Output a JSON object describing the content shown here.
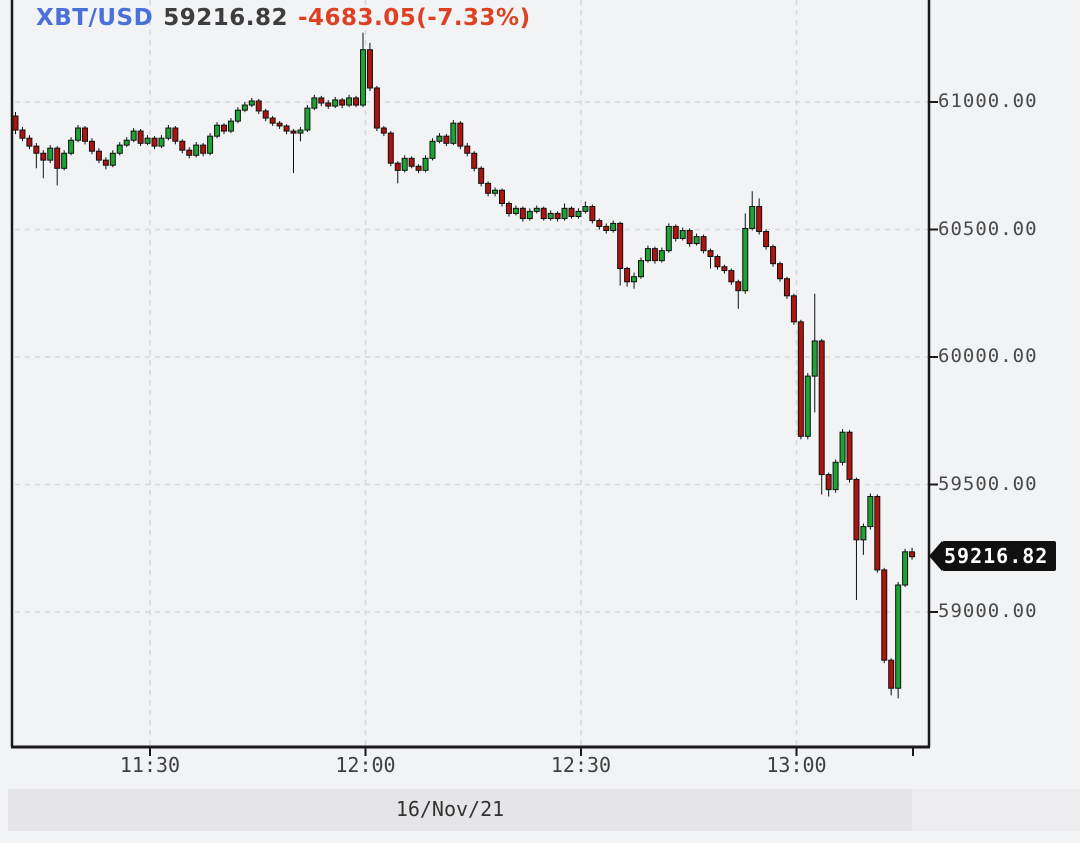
{
  "header": {
    "symbol": "XBT/USD",
    "last_price": "59216.82",
    "change": "-4683.05(-7.33%)"
  },
  "price_tag": {
    "value": "59216.82"
  },
  "date_label": "16/Nov/21",
  "colors": {
    "up_candle": "#1da334",
    "down_candle": "#ad1410",
    "candle_outline": "#101010",
    "axis": "#1a1a1a",
    "gridline": "#d8d8da",
    "symbol_blue": "#4a70d9",
    "change_red": "#dd4023",
    "tag_background": "#101010",
    "background": "#f2f3f5"
  },
  "chart_data": {
    "type": "candlestick",
    "title": "XBT/USD",
    "interval": "1m",
    "start_time": "11:10",
    "date": "16/Nov/21",
    "last_price": 59216.82,
    "change_abs": -4683.05,
    "change_pct": -7.33,
    "ylim": [
      58600,
      61350
    ],
    "grid": "dashed",
    "y_axis": {
      "labels": [
        {
          "text": "61000.00",
          "price": 61000
        },
        {
          "text": "60500.00",
          "price": 60500
        },
        {
          "text": "60000.00",
          "price": 60000
        },
        {
          "text": "59500.00",
          "price": 59500
        },
        {
          "text": "59000.00",
          "price": 59000
        }
      ]
    },
    "x_axis": {
      "labels": [
        "11:30",
        "12:00",
        "12:30",
        "13:00"
      ]
    },
    "candles": [
      [
        60945,
        60961,
        60874,
        60890
      ],
      [
        60890,
        60902,
        60846,
        60858
      ],
      [
        60858,
        60870,
        60815,
        60827
      ],
      [
        60827,
        60839,
        60740,
        60799
      ],
      [
        60799,
        60811,
        60701,
        60772
      ],
      [
        60772,
        60831,
        60760,
        60819
      ],
      [
        60819,
        60827,
        60673,
        60740
      ],
      [
        60740,
        60811,
        60732,
        60799
      ],
      [
        60799,
        60862,
        60791,
        60850
      ],
      [
        60850,
        60910,
        60842,
        60898
      ],
      [
        60898,
        60906,
        60834,
        60846
      ],
      [
        60846,
        60858,
        60795,
        60807
      ],
      [
        60807,
        60819,
        60760,
        60772
      ],
      [
        60772,
        60783,
        60736,
        60752
      ],
      [
        60752,
        60811,
        60744,
        60799
      ],
      [
        60799,
        60843,
        60791,
        60831
      ],
      [
        60831,
        60862,
        60823,
        60850
      ],
      [
        60850,
        60898,
        60842,
        60886
      ],
      [
        60886,
        60894,
        60827,
        60838
      ],
      [
        60838,
        60870,
        60831,
        60858
      ],
      [
        60858,
        60866,
        60815,
        60827
      ],
      [
        60827,
        60870,
        60819,
        60858
      ],
      [
        60858,
        60910,
        60850,
        60898
      ],
      [
        60898,
        60906,
        60834,
        60846
      ],
      [
        60846,
        60854,
        60799,
        60811
      ],
      [
        60811,
        60823,
        60779,
        60791
      ],
      [
        60791,
        60843,
        60783,
        60831
      ],
      [
        60831,
        60839,
        60787,
        60799
      ],
      [
        60799,
        60878,
        60791,
        60866
      ],
      [
        60866,
        60921,
        60858,
        60909
      ],
      [
        60909,
        60917,
        60874,
        60886
      ],
      [
        60886,
        60937,
        60878,
        60925
      ],
      [
        60925,
        60980,
        60917,
        60968
      ],
      [
        60968,
        61000,
        60960,
        60988
      ],
      [
        60988,
        61016,
        60980,
        61004
      ],
      [
        61004,
        61012,
        60953,
        60965
      ],
      [
        60965,
        60973,
        60925,
        60937
      ],
      [
        60937,
        60945,
        60906,
        60917
      ],
      [
        60917,
        60925,
        60894,
        60906
      ],
      [
        60906,
        60913,
        60874,
        60886
      ],
      [
        60886,
        60894,
        60721,
        60878
      ],
      [
        60878,
        60902,
        60846,
        60890
      ],
      [
        60890,
        60988,
        60882,
        60976
      ],
      [
        60976,
        61028,
        60968,
        61016
      ],
      [
        61016,
        61024,
        60984,
        60996
      ],
      [
        60996,
        61008,
        60973,
        60984
      ],
      [
        60984,
        61020,
        60976,
        61008
      ],
      [
        61008,
        61016,
        60976,
        60988
      ],
      [
        60988,
        61028,
        60980,
        61016
      ],
      [
        61016,
        61024,
        60980,
        60988
      ],
      [
        60988,
        61272,
        60980,
        61205
      ],
      [
        61205,
        61232,
        61043,
        61055
      ],
      [
        61055,
        61063,
        60886,
        60898
      ],
      [
        60898,
        60906,
        60866,
        60878
      ],
      [
        60878,
        60886,
        60748,
        60760
      ],
      [
        60760,
        60768,
        60681,
        60732
      ],
      [
        60732,
        60791,
        60724,
        60779
      ],
      [
        60779,
        60787,
        60740,
        60748
      ],
      [
        60748,
        60756,
        60721,
        60732
      ],
      [
        60732,
        60791,
        60724,
        60779
      ],
      [
        60779,
        60858,
        60771,
        60846
      ],
      [
        60846,
        60878,
        60838,
        60866
      ],
      [
        60866,
        60874,
        60827,
        60838
      ],
      [
        60838,
        60929,
        60831,
        60917
      ],
      [
        60917,
        60925,
        60815,
        60827
      ],
      [
        60827,
        60839,
        60787,
        60799
      ],
      [
        60799,
        60807,
        60728,
        60740
      ],
      [
        60740,
        60748,
        60669,
        60681
      ],
      [
        60681,
        60689,
        60630,
        60642
      ],
      [
        60642,
        60665,
        60630,
        60654
      ],
      [
        60654,
        60661,
        60590,
        60602
      ],
      [
        60602,
        60610,
        60551,
        60563
      ],
      [
        60563,
        60594,
        60555,
        60583
      ],
      [
        60583,
        60590,
        60531,
        60543
      ],
      [
        60543,
        60583,
        60535,
        60571
      ],
      [
        60571,
        60594,
        60563,
        60583
      ],
      [
        60583,
        60590,
        60535,
        60543
      ],
      [
        60543,
        60575,
        60535,
        60563
      ],
      [
        60563,
        60571,
        60531,
        60543
      ],
      [
        60543,
        60602,
        60535,
        60583
      ],
      [
        60583,
        60590,
        60543,
        60551
      ],
      [
        60551,
        60583,
        60543,
        60571
      ],
      [
        60571,
        60610,
        60563,
        60590
      ],
      [
        60590,
        60598,
        60524,
        60535
      ],
      [
        60535,
        60543,
        60500,
        60512
      ],
      [
        60512,
        60524,
        60484,
        60496
      ],
      [
        60496,
        60535,
        60488,
        60524
      ],
      [
        60524,
        60531,
        60280,
        60347
      ],
      [
        60347,
        60354,
        60276,
        60295
      ],
      [
        60295,
        60331,
        60268,
        60315
      ],
      [
        60315,
        60390,
        60307,
        60378
      ],
      [
        60378,
        60437,
        60370,
        60425
      ],
      [
        60425,
        60433,
        60366,
        60378
      ],
      [
        60378,
        60429,
        60370,
        60417
      ],
      [
        60417,
        60524,
        60409,
        60512
      ],
      [
        60512,
        60520,
        60453,
        60465
      ],
      [
        60465,
        60508,
        60457,
        60496
      ],
      [
        60496,
        60504,
        60433,
        60445
      ],
      [
        60445,
        60484,
        60437,
        60472
      ],
      [
        60472,
        60480,
        60406,
        60417
      ],
      [
        60417,
        60425,
        60347,
        60394
      ],
      [
        60394,
        60402,
        60343,
        60354
      ],
      [
        60354,
        60362,
        60327,
        60339
      ],
      [
        60339,
        60347,
        60283,
        60295
      ],
      [
        60295,
        60303,
        60189,
        60260
      ],
      [
        60260,
        60563,
        60248,
        60504
      ],
      [
        60504,
        60650,
        60496,
        60590
      ],
      [
        60590,
        60622,
        60480,
        60492
      ],
      [
        60492,
        60500,
        60421,
        60433
      ],
      [
        60433,
        60441,
        60354,
        60366
      ],
      [
        60366,
        60374,
        60295,
        60307
      ],
      [
        60307,
        60315,
        60228,
        60240
      ],
      [
        60240,
        60248,
        60126,
        60138
      ],
      [
        60138,
        60146,
        59677,
        59689
      ],
      [
        59689,
        59937,
        59677,
        59925
      ],
      [
        59925,
        60248,
        59783,
        60063
      ],
      [
        60063,
        60071,
        59461,
        59539
      ],
      [
        59539,
        59547,
        59453,
        59480
      ],
      [
        59480,
        59598,
        59468,
        59587
      ],
      [
        59587,
        59717,
        59575,
        59705
      ],
      [
        59705,
        59713,
        59508,
        59520
      ],
      [
        59520,
        59527,
        59047,
        59283
      ],
      [
        59283,
        59347,
        59224,
        59335
      ],
      [
        59335,
        59465,
        59323,
        59453
      ],
      [
        59453,
        59461,
        59154,
        59165
      ],
      [
        59165,
        59173,
        58799,
        58811
      ],
      [
        58811,
        58819,
        58673,
        58701
      ],
      [
        58701,
        59118,
        58661,
        59106
      ],
      [
        59106,
        59248,
        59098,
        59236
      ],
      [
        59236,
        59252,
        59205,
        59216.82
      ]
    ]
  }
}
